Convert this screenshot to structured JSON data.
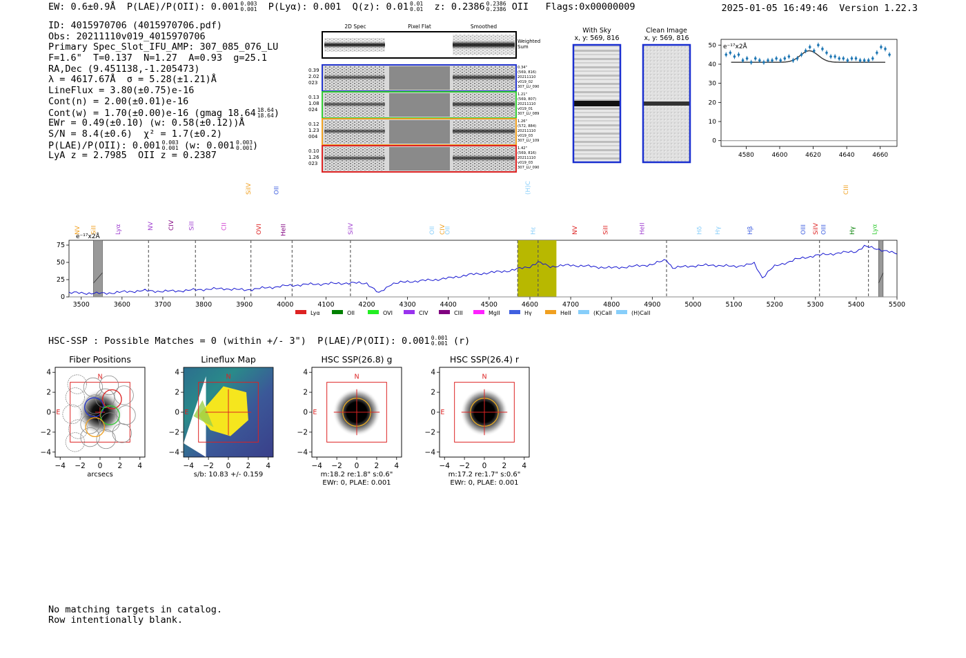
{
  "header": {
    "ew": "EW: 0.6±0.9Å",
    "plae_label": "P(LAE)/P(OII): 0.001",
    "plae_hi": "0.003",
    "plae_lo": "0.001",
    "plya": "P(Lyα): 0.001",
    "qz_label": "Q(z): 0.01",
    "qz_hi": "0.01",
    "qz_lo": "0.01",
    "z_label": "z: 0.2386",
    "z_hi": "0.2386",
    "z_lo": "0.2386",
    "z_line": "OII",
    "flags": "Flags:0x00000009",
    "datetime": "2025-01-05 16:49:46",
    "version": "Version 1.22.3"
  },
  "info": {
    "id": "ID: 4015970706 (4015970706.pdf)",
    "obs": "Obs: 20211110v019_4015970706",
    "primary": "Primary Spec_Slot_IFU_AMP: 307_085_076_LU",
    "fieldline": "F=1.6\"  T=0.137  N=1.27  A=0.93  g=25.1",
    "radec": "RA,Dec (9.451138,-1.205473)",
    "lambda": "λ = 4617.67Å  σ = 5.28(±1.21)Å",
    "lineflux": "LineFlux = 3.80(±0.75)e-16",
    "contn": "Cont(n) = 2.00(±0.01)e-16",
    "contw": "Cont(w) = 1.70(±0.00)e-16 (gmag 18.64",
    "contw_hi": "18.64",
    "contw_lo": "18.64",
    "ewr": "EWr = 0.49(±0.10) (w: 0.58(±0.12))Å",
    "sn": "S/N = 8.4(±0.6)  χ² = 1.7(±0.2)",
    "plae_a": "P(LAE)/P(OII): 0.001",
    "plae_a_hi": "0.003",
    "plae_a_lo": "0.001",
    "plae_b": "(w: 0.001",
    "plae_b_hi": "0.003",
    "plae_b_lo": "0.001",
    "lya_oii": "LyA z = 2.7985  OII z = 0.2387"
  },
  "cutouts": {
    "col_labels": [
      "2D Spec",
      "Pixel Flat",
      "Smoothed"
    ],
    "weighted_sum": "Weighted Sum",
    "rows": [
      {
        "weights": [
          "0.39",
          "2.02",
          "023"
        ],
        "meta": [
          "0.34\"",
          "(569, 816)",
          "20211110",
          "v019_02",
          "307_LU_090"
        ],
        "color": "#2233cc"
      },
      {
        "weights": [
          "0.13",
          "1.08",
          "024"
        ],
        "meta": [
          "1.21\"",
          "(569, 807)",
          "20211110",
          "v019_01",
          "307_LU_089"
        ],
        "color": "#33cc33"
      },
      {
        "weights": [
          "0.12",
          "1.23",
          "004"
        ],
        "meta": [
          "1.26\"",
          "(572, 884)",
          "20211110",
          "v019_03",
          "307_LU_109"
        ],
        "color": "#f0a020"
      },
      {
        "weights": [
          "0.10",
          "1.26",
          "023"
        ],
        "meta": [
          "1.42\"",
          "(569, 816)",
          "20211110",
          "v019_03",
          "307_LU_090"
        ],
        "color": "#dd2222"
      }
    ]
  },
  "sky_panels": {
    "with_sky_title": "With Sky",
    "with_sky_xy": "x, y: 569, 816",
    "clean_title": "Clean Image",
    "clean_xy": "x, y: 569, 816"
  },
  "zoom_plot": {
    "unit_label": "e⁻¹⁷x2Å",
    "yticks": [
      "0",
      "10",
      "20",
      "30",
      "40",
      "50"
    ],
    "xticks": [
      "4580",
      "4600",
      "4620",
      "4640",
      "4660"
    ]
  },
  "full_spectrum": {
    "unit_label": "e⁻¹⁷x2Å",
    "yticks": [
      "0",
      "25",
      "50",
      "75"
    ],
    "xticks": [
      "3500",
      "3600",
      "3700",
      "3800",
      "3900",
      "4000",
      "4100",
      "4200",
      "4300",
      "4400",
      "4500",
      "4600",
      "4700",
      "4800",
      "4900",
      "5000",
      "5100",
      "5200",
      "5300",
      "5400",
      "5500"
    ],
    "line_labels": [
      {
        "text": "NV",
        "color": "#f0a020"
      },
      {
        "text": "SiII",
        "color": "#f0a020"
      },
      {
        "text": "Lyα",
        "color": "#a040d0"
      },
      {
        "text": "NV",
        "color": "#a040d0"
      },
      {
        "text": "CIV",
        "color": "#800080"
      },
      {
        "text": "SiII",
        "color": "#a040d0"
      },
      {
        "text": "CII",
        "color": "#d040d0"
      },
      {
        "text": "SiIV",
        "color": "#f0a020"
      },
      {
        "text": "OVI",
        "color": "#dd2222"
      },
      {
        "text": "OII",
        "color": "#4060e0"
      },
      {
        "text": "HeII",
        "color": "#800080"
      },
      {
        "text": "SiIV",
        "color": "#a040d0"
      },
      {
        "text": "OII",
        "color": "#87cefa"
      },
      {
        "text": "CIV",
        "color": "#f0a020"
      },
      {
        "text": "OII",
        "color": "#87cefa"
      },
      {
        "text": "(H)CaII",
        "color": "#87cefa"
      },
      {
        "text": "Hε",
        "color": "#87cefa"
      },
      {
        "text": "NV",
        "color": "#dd2222"
      },
      {
        "text": "SiII",
        "color": "#dd2222"
      },
      {
        "text": "HeII",
        "color": "#a040d0"
      },
      {
        "text": "Hδ",
        "color": "#87cefa"
      },
      {
        "text": "Hγ",
        "color": "#87cefa"
      },
      {
        "text": "Hβ",
        "color": "#4060e0"
      },
      {
        "text": "OIII",
        "color": "#4060e0"
      },
      {
        "text": "SiIV",
        "color": "#dd2222"
      },
      {
        "text": "OIII",
        "color": "#4060e0"
      },
      {
        "text": "Hγ",
        "color": "#008000"
      },
      {
        "text": "CIII",
        "color": "#f0a020"
      },
      {
        "text": "Lyα",
        "color": "#33cc33"
      }
    ],
    "legend": [
      {
        "label": "Lyα",
        "color": "#dd2222"
      },
      {
        "label": "OII",
        "color": "#008000"
      },
      {
        "label": "OVI",
        "color": "#22ee22"
      },
      {
        "label": "CIV",
        "color": "#9933ee"
      },
      {
        "label": "CIII",
        "color": "#800080"
      },
      {
        "label": "MgII",
        "color": "#ff22ff"
      },
      {
        "label": "Hγ",
        "color": "#4060e0"
      },
      {
        "label": "HeII",
        "color": "#f0a020"
      },
      {
        "label": "(K)CaII",
        "color": "#87cefa"
      },
      {
        "label": "(H)CaII",
        "color": "#87cefa"
      }
    ]
  },
  "hsc": {
    "summary": "HSC-SSP : Possible Matches = 0 (within +/- 3\")  P(LAE)/P(OII): 0.001",
    "summary_hi": "0.001",
    "summary_lo": "0.001",
    "summary_band": "(r)",
    "panels": [
      {
        "title": "Fiber Positions",
        "caption1": "arcsecs",
        "caption2": ""
      },
      {
        "title": "Lineflux Map",
        "caption1": "s/b: 10.83 +/- 0.159",
        "caption2": ""
      },
      {
        "title": "HSC SSP(26.8) g",
        "caption1": "m:18.2  re:1.8\"  s:0.6\"",
        "caption2": "EWr: 0, PLAE: 0.001"
      },
      {
        "title": "HSC SSP(26.4) r",
        "caption1": "m:17.2  re:1.7\"  s:0.6\"",
        "caption2": "EWr: 0, PLAE: 0.001"
      }
    ],
    "ticks": [
      "4",
      "2",
      "0",
      "−2",
      "−4"
    ],
    "xticks": [
      "−4",
      "−2",
      "0",
      "2",
      "4"
    ],
    "north": "N",
    "east": "E"
  },
  "footer": {
    "line1": "No matching targets in catalog.",
    "line2": "Row intentionally blank."
  },
  "chart_data": [
    {
      "type": "scatter",
      "title": "Zoomed line fit",
      "xlabel": "",
      "ylabel": "e-17 x2A",
      "xlim": [
        4565,
        4670
      ],
      "ylim": [
        -3,
        53
      ],
      "points_x": [
        4568,
        4570.5,
        4573,
        4575.5,
        4578,
        4580.5,
        4583,
        4585.5,
        4588,
        4590.5,
        4593,
        4595.5,
        4598,
        4600.5,
        4603,
        4605.5,
        4608,
        4610.5,
        4613,
        4615.5,
        4618,
        4620.5,
        4623,
        4625.5,
        4628,
        4630.5,
        4633,
        4635.5,
        4638,
        4640.5,
        4643,
        4645.5,
        4648,
        4650.5,
        4653,
        4655.5,
        4658,
        4660.5,
        4663,
        4665.5
      ],
      "points_y": [
        45,
        46,
        44,
        45,
        42,
        43,
        41,
        43,
        42,
        41,
        42,
        42,
        43,
        42,
        43,
        44,
        42,
        43,
        45,
        47,
        49,
        47,
        50,
        48,
        46,
        44,
        44,
        43,
        43,
        42,
        43,
        43,
        42,
        42,
        42,
        43,
        46,
        49,
        48,
        45
      ],
      "fit_center": 4617.67,
      "fit_sigma": 5.28,
      "fit_continuum": 41,
      "fit_amplitude": 6,
      "fit_xrange": [
        4571,
        4663
      ]
    },
    {
      "type": "line",
      "title": "Full spectrum",
      "xlabel": "wavelength (A)",
      "ylabel": "e-17 x2A",
      "xlim": [
        3470,
        5500
      ],
      "ylim": [
        0,
        82
      ],
      "x": [
        3470,
        3550,
        3600,
        3650,
        3700,
        3750,
        3800,
        3850,
        3900,
        3950,
        4000,
        4050,
        4100,
        4150,
        4200,
        4230,
        4260,
        4300,
        4350,
        4400,
        4450,
        4500,
        4550,
        4600,
        4620,
        4650,
        4700,
        4750,
        4800,
        4850,
        4900,
        4935,
        4950,
        5000,
        5050,
        5100,
        5150,
        5170,
        5190,
        5200,
        5250,
        5300,
        5350,
        5400,
        5420,
        5450,
        5500
      ],
      "y": [
        6,
        5,
        7,
        9,
        8,
        9,
        11,
        12,
        10,
        13,
        16,
        18,
        19,
        20,
        20,
        5,
        19,
        22,
        24,
        27,
        32,
        35,
        38,
        44,
        50,
        44,
        46,
        44,
        42,
        44,
        47,
        54,
        42,
        45,
        46,
        44,
        48,
        28,
        40,
        44,
        54,
        60,
        63,
        66,
        73,
        70,
        62
      ],
      "dashed_lines_x": [
        3665,
        3780,
        3916,
        4017,
        4160,
        4570,
        4620,
        4935,
        5310,
        5430
      ],
      "highlight_range": [
        4570,
        4665
      ],
      "masked_ranges": [
        [
          3530,
          3552
        ],
        [
          5455,
          5466
        ]
      ]
    }
  ]
}
